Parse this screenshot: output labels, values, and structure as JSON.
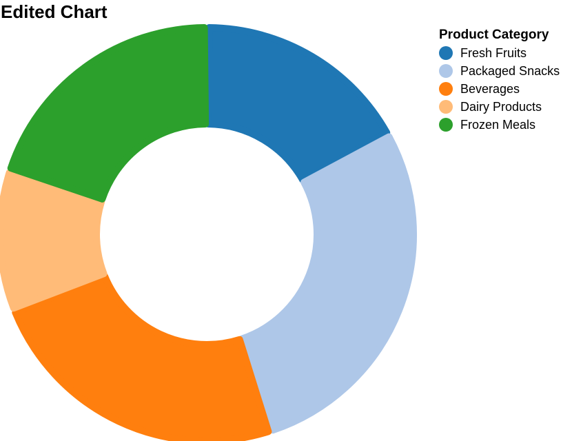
{
  "chart_data": {
    "type": "pie",
    "style": "donut",
    "title": "Edited Chart",
    "legend": {
      "title": "Product Category",
      "placement": "top-right"
    },
    "categories": [
      "Fresh Fruits",
      "Packaged Snacks",
      "Beverages",
      "Dairy Products",
      "Frozen Meals"
    ],
    "values": [
      17,
      28,
      24,
      11,
      20
    ],
    "colors": [
      "#1f77b4",
      "#aec7e8",
      "#ff7f0e",
      "#ffbb78",
      "#2ca02c"
    ]
  }
}
